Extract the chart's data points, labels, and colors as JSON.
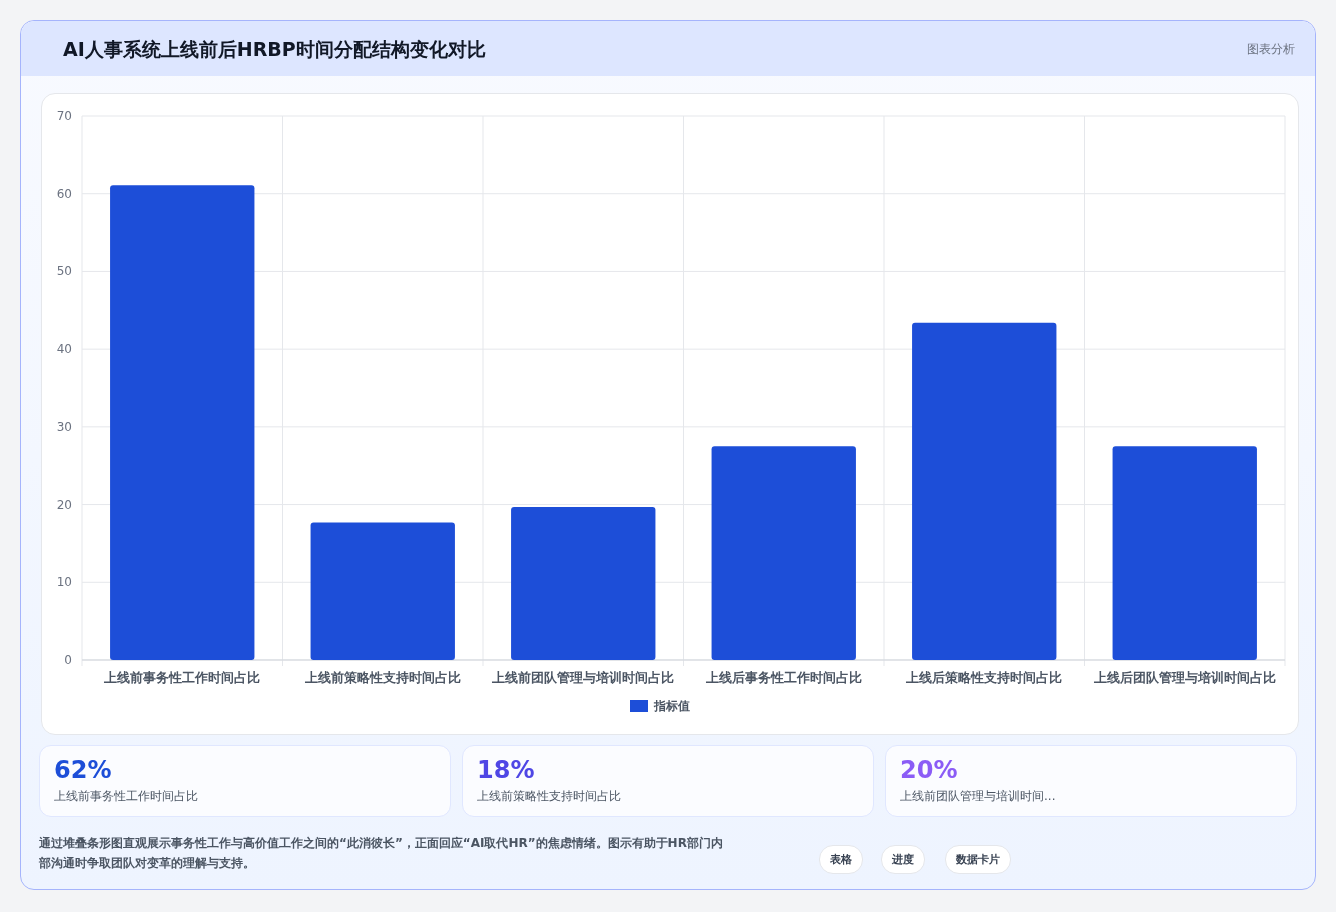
{
  "chart_data": [
    {
      "type": "bar",
      "title": "AI人事系统上线前后HRBP时间分配结构变化对比",
      "categories": [
        "上线前事务性工作时间占比",
        "上线前策略性支持时间占比",
        "上线前团队管理与培训时间占比",
        "上线后事务性工作时间占比",
        "上线后策略性支持时间占比",
        "上线后团队管理与培训时间占比"
      ],
      "series": [
        {
          "name": "指标值",
          "color": "#1d4ed8",
          "values": [
            61.1,
            17.7,
            19.7,
            27.5,
            43.4,
            27.5
          ]
        }
      ],
      "ylim": [
        0,
        70
      ],
      "yticks": [
        0,
        10,
        20,
        30,
        40,
        50,
        60,
        70
      ],
      "grid": true,
      "legend": "bottom",
      "annotations": [
        "图表分析",
        "通过堆叠条形图直观展示事务性工作与高价值工作之间的“此消彼长”，正面回应“AI取代HR”的焦虑情绪。图示有助于HR部门内部沟通时争取团队对变革的理解与支持。"
      ]
    },
    {
      "type": "other",
      "annotations": [
        "62%",
        "上线前事务性工作时间占比",
        "18%",
        "上线前策略性支持时间占比",
        "20%",
        "上线前团队管理与培训时间...",
        "表格",
        "进度",
        "数据卡片"
      ]
    }
  ]
}
